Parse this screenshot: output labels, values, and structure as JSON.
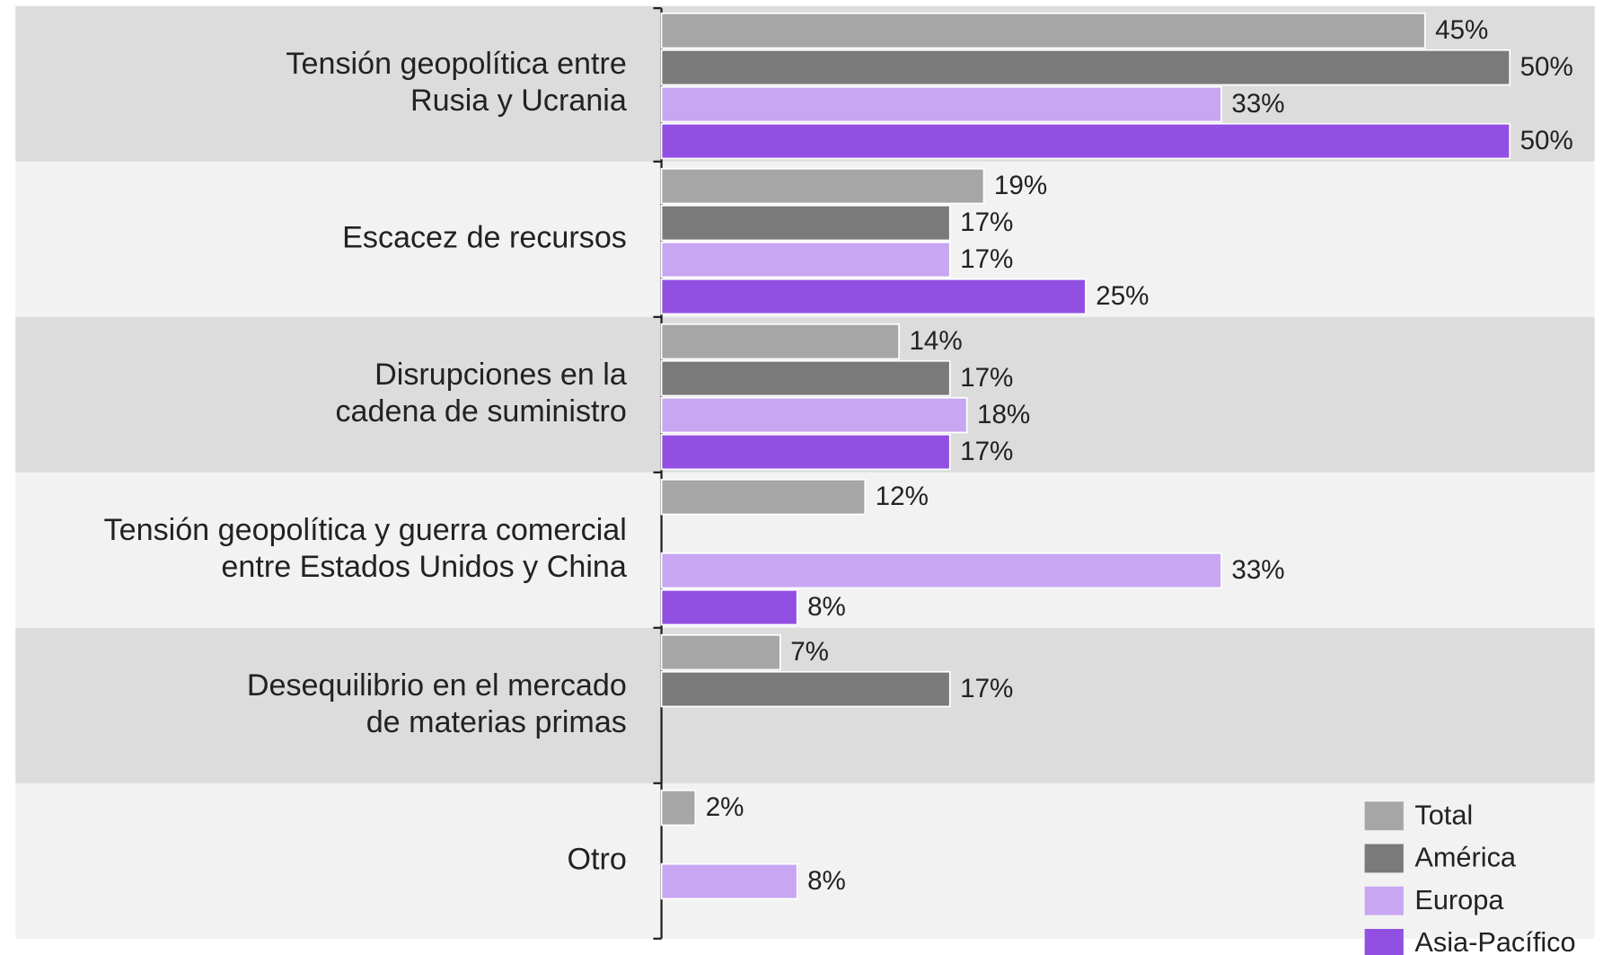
{
  "chart_data": {
    "type": "bar",
    "orientation": "horizontal",
    "categories": [
      [
        "Tensión geopolítica entre",
        "Rusia y Ucrania"
      ],
      [
        "Escacez de recursos"
      ],
      [
        "Disrupciones en la",
        "cadena de suministro"
      ],
      [
        "Tensión geopolítica y guerra comercial",
        "entre Estados Unidos y China"
      ],
      [
        "Desequilibrio en el mercado",
        "de materias primas"
      ],
      [
        "Otro"
      ]
    ],
    "series": [
      {
        "name": "Total",
        "color": "#a6a6a6",
        "values": [
          45,
          19,
          14,
          12,
          7,
          2
        ],
        "value_labels": [
          "45%",
          "19%",
          "14%",
          "12%",
          "7%",
          "2%"
        ]
      },
      {
        "name": "América",
        "color": "#7a7a7a",
        "values": [
          50,
          17,
          17,
          null,
          17,
          null
        ],
        "value_labels": [
          "50%",
          "17%",
          "17%",
          null,
          "17%",
          null
        ]
      },
      {
        "name": "Europa",
        "color": "#c8a6f2",
        "values": [
          33,
          17,
          18,
          33,
          null,
          8
        ],
        "value_labels": [
          "33%",
          "17%",
          "18%",
          "33%",
          null,
          "8%"
        ]
      },
      {
        "name": "Asia-Pacífico",
        "color": "#9150e2",
        "values": [
          50,
          25,
          17,
          8,
          null,
          null
        ],
        "value_labels": [
          "50%",
          "25%",
          "17%",
          "8%",
          null,
          null
        ]
      }
    ],
    "xlim": [
      0,
      55
    ],
    "legend": "bottom-right"
  }
}
